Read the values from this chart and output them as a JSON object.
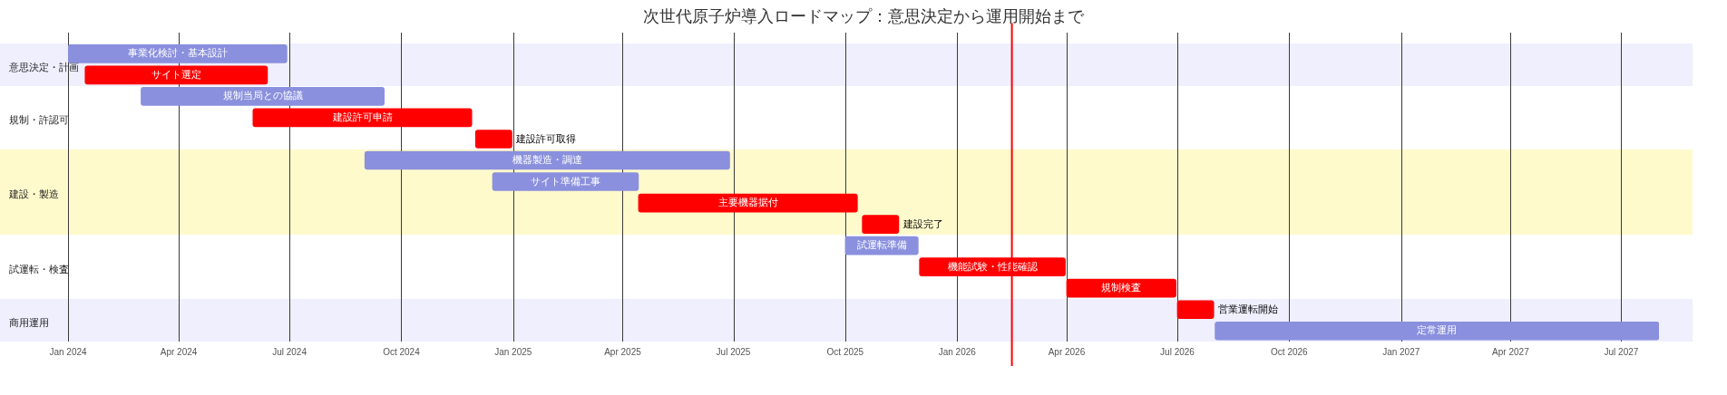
{
  "chart_data": {
    "type": "bar",
    "orientation": "horizontal",
    "title": "次世代原子炉導入ロードマップ：意思決定から運用開始まで",
    "categories": [
      "事業化検討・基本設計",
      "サイト選定",
      "規制当局との協議",
      "建設許可申請",
      "建設許可取得",
      "機器製造・調達",
      "サイト準備工事",
      "主要機器据付",
      "建設完了",
      "試運転準備",
      "機能試験・性能確認",
      "規制検査",
      "営業運転開始",
      "定常運用"
    ],
    "base": [
      19723,
      19737,
      19783,
      19875,
      20058,
      19967,
      20072,
      20192,
      20376,
      20362,
      20423,
      20544,
      20635,
      20666
    ],
    "values": [
      180,
      150,
      200,
      180,
      30,
      300,
      120,
      180,
      30,
      60,
      120,
      90,
      30,
      365
    ],
    "colors": [
      "#8a90dd",
      "#ff0000",
      "#8a90dd",
      "#ff0000",
      "#ff0000",
      "#8a90dd",
      "#8a90dd",
      "#ff0000",
      "#ff0000",
      "#8a90dd",
      "#ff0000",
      "#ff0000",
      "#ff0000",
      "#8a90dd"
    ],
    "xlim": [
      "2024-01-01",
      "2027-08-01"
    ],
    "xticks": [
      {
        "value": "2024-01-01",
        "label": "Jan 2024"
      },
      {
        "value": "2024-04-01",
        "label": "Apr 2024"
      },
      {
        "value": "2024-07-01",
        "label": "Jul 2024"
      },
      {
        "value": "2024-10-01",
        "label": "Oct 2024"
      },
      {
        "value": "2025-01-01",
        "label": "Jan 2025"
      },
      {
        "value": "2025-04-01",
        "label": "Apr 2025"
      },
      {
        "value": "2025-07-01",
        "label": "Jul 2025"
      },
      {
        "value": "2025-10-01",
        "label": "Oct 2025"
      },
      {
        "value": "2026-01-01",
        "label": "Jan 2026"
      },
      {
        "value": "2026-04-01",
        "label": "Apr 2026"
      },
      {
        "value": "2026-07-01",
        "label": "Jul 2026"
      },
      {
        "value": "2026-10-01",
        "label": "Oct 2026"
      },
      {
        "value": "2027-01-01",
        "label": "Jan 2027"
      },
      {
        "value": "2027-04-01",
        "label": "Apr 2027"
      },
      {
        "value": "2027-07-01",
        "label": "Jul 2027"
      }
    ],
    "bands": [
      {
        "axis": "y",
        "from": "事業化検討・基本設計",
        "to": "サイト選定",
        "label": "意思決定・計画",
        "color": "#efeffe"
      },
      {
        "axis": "y",
        "from": "機器製造・調達",
        "to": "建設完了",
        "label": "建設・製造",
        "color": "#fffacc"
      },
      {
        "axis": "y",
        "from": "営業運転開始",
        "to": "定常運用",
        "label": "商用運用",
        "color": "#efeffe"
      }
    ],
    "annotations": [
      "規制・許認可",
      "試運転・検査"
    ],
    "ref_lines": [
      {
        "axis": "x",
        "value": "2026-02-15",
        "color": "#ff0000"
      }
    ],
    "grid": "x"
  }
}
